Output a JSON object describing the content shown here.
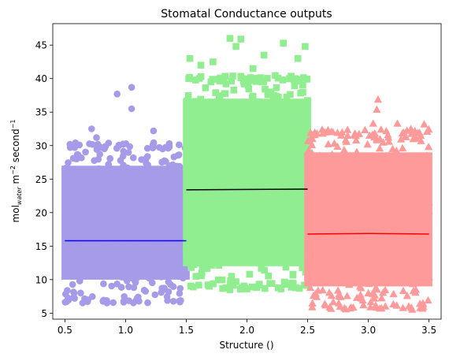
{
  "chart_data": {
    "type": "scatter",
    "title": "Stomatal Conductance outputs",
    "xlabel": "Structure ()",
    "ylabel": {
      "prefix": "mol",
      "subscript": "water",
      "mid": " m",
      "sup1": "−2",
      "mid2": " second",
      "sup2": "−1"
    },
    "xlim": [
      0.4,
      3.6
    ],
    "ylim": [
      4.1,
      48.2
    ],
    "xticks": [
      {
        "value": 0.5,
        "label": "0.5"
      },
      {
        "value": 1.0,
        "label": "1.0"
      },
      {
        "value": 1.5,
        "label": "1.5"
      },
      {
        "value": 2.0,
        "label": "2.0"
      },
      {
        "value": 2.5,
        "label": "2.5"
      },
      {
        "value": 3.0,
        "label": "3.0"
      },
      {
        "value": 3.5,
        "label": "3.5"
      }
    ],
    "yticks": [
      {
        "value": 5,
        "label": "5"
      },
      {
        "value": 10,
        "label": "10"
      },
      {
        "value": 15,
        "label": "15"
      },
      {
        "value": 20,
        "label": "20"
      },
      {
        "value": 25,
        "label": "25"
      },
      {
        "value": 30,
        "label": "30"
      },
      {
        "value": 35,
        "label": "35"
      },
      {
        "value": 40,
        "label": "40"
      },
      {
        "value": 45,
        "label": "45"
      }
    ],
    "grid": false,
    "series": [
      {
        "marker": "circle",
        "color": "#a59be8",
        "x_range": [
          0.5,
          1.5
        ],
        "core_y_range": [
          10,
          27
        ],
        "outliers": [
          [
            0.58,
            7.2
          ],
          [
            0.69,
            7.0
          ],
          [
            0.72,
            32.5
          ],
          [
            0.76,
            31.2
          ],
          [
            0.86,
            30.4
          ],
          [
            0.93,
            37.7
          ],
          [
            1.05,
            38.7
          ],
          [
            1.05,
            35.5
          ],
          [
            1.23,
            32.2
          ],
          [
            1.36,
            30.3
          ],
          [
            0.98,
            30.2
          ],
          [
            1.18,
            29.6
          ],
          [
            0.63,
            8.0
          ],
          [
            1.3,
            8.3
          ],
          [
            1.45,
            8.7
          ]
        ],
        "fit_line": {
          "x": [
            0.5,
            1.5
          ],
          "y": [
            15.8,
            15.8
          ],
          "color": "#0000ff"
        }
      },
      {
        "marker": "square",
        "color": "#90ee90",
        "x_range": [
          1.5,
          2.5
        ],
        "core_y_range": [
          12,
          37
        ],
        "outliers": [
          [
            1.53,
            43.0
          ],
          [
            1.62,
            42.0
          ],
          [
            1.72,
            42.5
          ],
          [
            1.86,
            46.0
          ],
          [
            1.91,
            44.8
          ],
          [
            1.95,
            45.9
          ],
          [
            2.14,
            43.5
          ],
          [
            2.3,
            45.3
          ],
          [
            2.42,
            43.0
          ],
          [
            2.48,
            44.8
          ],
          [
            1.52,
            40.0
          ],
          [
            2.05,
            41.5
          ],
          [
            1.96,
            8.8
          ],
          [
            2.1,
            9.2
          ],
          [
            1.58,
            10.5
          ],
          [
            2.38,
            10.8
          ]
        ],
        "fit_line": {
          "x": [
            1.5,
            2.5
          ],
          "y": [
            23.4,
            23.5
          ],
          "color": "#000000"
        }
      },
      {
        "marker": "triangle",
        "color": "#ff9a9a",
        "x_range": [
          2.5,
          3.5
        ],
        "core_y_range": [
          9,
          29
        ],
        "outliers": [
          [
            2.56,
            31.6
          ],
          [
            2.83,
            31.5
          ],
          [
            2.9,
            30.8
          ],
          [
            3.04,
            33.3
          ],
          [
            3.08,
            36.9
          ],
          [
            3.07,
            35.4
          ],
          [
            3.24,
            33.3
          ],
          [
            3.46,
            33.2
          ],
          [
            3.37,
            31.0
          ],
          [
            3.17,
            30.6
          ],
          [
            2.62,
            32.4
          ],
          [
            3.45,
            6.5
          ],
          [
            3.32,
            7.6
          ],
          [
            2.76,
            7.5
          ],
          [
            3.05,
            7.2
          ],
          [
            3.0,
            8.0
          ]
        ],
        "fit_line": {
          "x": [
            2.5,
            3.0,
            3.5
          ],
          "y": [
            16.8,
            16.9,
            16.8
          ],
          "color": "#ff0000"
        }
      }
    ]
  }
}
